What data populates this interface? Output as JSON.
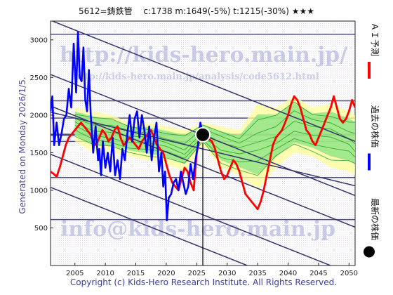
{
  "header": {
    "title": "5612=鋳鉄管　 c:1738  m:1649(-5%)  t:1215(-30%)  ★★★"
  },
  "side_label": "Generated on Monday 2026/1/5.",
  "footer": "Copyright (c) Kids-Hero Research Institute. All Rights Reserved.",
  "watermarks": {
    "url": "http://kids-hero.main.jp/",
    "analysis_url": "http://kids-hero.main.jp/analysis/code5612.html",
    "email": "info@kids-hero.main.jp"
  },
  "legend": [
    {
      "label": "ＡＩ予測",
      "color": "#ff0000",
      "marker": "line"
    },
    {
      "label": "過去の株価",
      "color": "#0000ff",
      "marker": "line"
    },
    {
      "label": "最新の株価",
      "color": "#000000",
      "marker": "dot"
    }
  ],
  "colors": {
    "ai_forecast": "#ff0000",
    "past_price": "#0000ff",
    "latest_price": "#000000",
    "trend_lines": "#33336b",
    "ensemble": "#22aa22",
    "ensemble_fill": "#7de07d",
    "ensemble_fill_light": "#ffff99"
  },
  "chart_data": {
    "type": "line",
    "xlim": [
      2001,
      2051
    ],
    "ylim": [
      0,
      3250
    ],
    "x_ticks": [
      2005,
      2010,
      2015,
      2020,
      2025,
      2030,
      2035,
      2040,
      2045,
      2050
    ],
    "x_tick_labels": [
      "2005",
      "2010",
      "2015",
      "2020",
      "2025",
      "2030",
      "2035",
      "2040",
      "2045",
      "2050"
    ],
    "y_ticks": [
      500,
      1000,
      1500,
      2000,
      2500,
      3000
    ],
    "y_tick_labels": [
      "500",
      "1000",
      "1500",
      "2000",
      "2500",
      "3000"
    ],
    "latest_point": {
      "x": 2026.0,
      "y": 1738
    },
    "current_marker_x": 2026.0,
    "horizontal_levels": [
      3075,
      2190,
      1960,
      1738,
      1649,
      1170,
      610
    ],
    "channel_lines": [
      {
        "x": [
          2001,
          2051
        ],
        "y": [
          3260,
          1650
        ]
      },
      {
        "x": [
          2001,
          2051
        ],
        "y": [
          2540,
          930
        ]
      },
      {
        "x": [
          2001,
          2051
        ],
        "y": [
          2120,
          510
        ]
      },
      {
        "x": [
          2001,
          2051
        ],
        "y": [
          1480,
          -130
        ]
      },
      {
        "x": [
          2001,
          2051
        ],
        "y": [
          1040,
          -570
        ]
      },
      {
        "x": [
          2001,
          2051
        ],
        "y": [
          2040,
          1060
        ]
      }
    ],
    "series": [
      {
        "name": "過去の株価",
        "x": [
          2001.0,
          2001.3,
          2001.6,
          2002.0,
          2002.4,
          2002.8,
          2003.2,
          2003.6,
          2004.0,
          2004.4,
          2004.8,
          2005.2,
          2005.5,
          2005.8,
          2006.1,
          2006.4,
          2006.7,
          2007.0,
          2007.3,
          2007.6,
          2008.0,
          2008.4,
          2008.8,
          2009.0,
          2009.3,
          2009.6,
          2010.0,
          2010.4,
          2010.8,
          2011.2,
          2011.6,
          2012.0,
          2012.4,
          2012.8,
          2013.2,
          2013.6,
          2014.0,
          2014.4,
          2014.8,
          2015.2,
          2015.6,
          2016.0,
          2016.4,
          2016.8,
          2017.2,
          2017.6,
          2018.0,
          2018.4,
          2018.8,
          2019.2,
          2019.5,
          2019.8,
          2020.1,
          2020.4,
          2020.8,
          2021.2,
          2021.6,
          2022.0,
          2022.4,
          2022.8,
          2023.2,
          2023.6,
          2024.0,
          2024.4,
          2024.8,
          2025.2,
          2025.6,
          2026.0
        ],
        "y": [
          2050,
          2250,
          1600,
          1900,
          1600,
          1750,
          1950,
          2000,
          2350,
          2100,
          2950,
          2300,
          3100,
          2500,
          2450,
          2900,
          2200,
          2050,
          2600,
          2000,
          1500,
          1850,
          1400,
          1550,
          1200,
          1650,
          1300,
          1500,
          1250,
          1700,
          1200,
          1400,
          1150,
          1550,
          1400,
          1750,
          2000,
          1650,
          1950,
          2050,
          1700,
          2000,
          1800,
          1500,
          1850,
          1400,
          1700,
          1900,
          1250,
          1500,
          1050,
          1250,
          600,
          900,
          950,
          1100,
          1150,
          1000,
          1250,
          1100,
          950,
          1050,
          1350,
          1150,
          1400,
          1600,
          1900,
          1738
        ]
      },
      {
        "name": "ＡＩ予測",
        "x": [
          2001.0,
          2001.5,
          2002.0,
          2002.5,
          2003.0,
          2003.5,
          2004.0,
          2004.5,
          2005.0,
          2005.5,
          2006.0,
          2006.5,
          2007.0,
          2007.5,
          2008.0,
          2008.5,
          2009.0,
          2009.5,
          2010.0,
          2010.5,
          2011.0,
          2011.5,
          2012.0,
          2012.5,
          2013.0,
          2013.5,
          2014.0,
          2014.5,
          2015.0,
          2015.5,
          2016.0,
          2016.5,
          2017.0,
          2017.5,
          2018.0,
          2018.5,
          2019.0,
          2019.5,
          2020.0,
          2020.5,
          2021.0,
          2021.5,
          2022.0,
          2022.5,
          2023.0,
          2023.5,
          2024.0,
          2024.5,
          2025.0,
          2025.5,
          2026.0,
          2026.5,
          2027.0,
          2027.5,
          2028.0,
          2028.5,
          2029.0,
          2029.5,
          2030.0,
          2030.5,
          2031.0,
          2031.5,
          2032.0,
          2032.5,
          2033.0,
          2033.5,
          2034.0,
          2034.5,
          2035.0,
          2035.5,
          2036.0,
          2036.5,
          2037.0,
          2037.5,
          2038.0,
          2038.5,
          2039.0,
          2039.5,
          2040.0,
          2040.5,
          2041.0,
          2041.5,
          2042.0,
          2042.5,
          2043.0,
          2043.5,
          2044.0,
          2044.5,
          2045.0,
          2045.5,
          2046.0,
          2046.5,
          2047.0,
          2047.5,
          2048.0,
          2048.5,
          2049.0,
          2049.5,
          2050.0,
          2050.5,
          2051.0
        ],
        "y": [
          1250,
          1220,
          1180,
          1300,
          1450,
          1600,
          1700,
          1750,
          1800,
          1850,
          1900,
          1850,
          1800,
          1750,
          1650,
          1600,
          1700,
          1800,
          1750,
          1650,
          1700,
          1800,
          1850,
          1700,
          1600,
          1650,
          1700,
          1650,
          1600,
          1550,
          1650,
          1700,
          1750,
          1800,
          1700,
          1600,
          1550,
          1500,
          1350,
          1200,
          1100,
          1050,
          1000,
          1150,
          1300,
          1250,
          1100,
          1000,
          1500,
          1700,
          1650,
          1700,
          1680,
          1650,
          1550,
          1400,
          1250,
          1150,
          1200,
          1300,
          1400,
          1350,
          1250,
          1100,
          950,
          900,
          850,
          800,
          750,
          850,
          1000,
          1200,
          1400,
          1600,
          1700,
          1750,
          1800,
          1900,
          2000,
          2150,
          2250,
          2200,
          2100,
          1950,
          1800,
          1750,
          1650,
          1600,
          1700,
          1800,
          1900,
          2000,
          2100,
          2250,
          2100,
          1950,
          1900,
          1950,
          2050,
          2200,
          2100
        ]
      }
    ],
    "ensemble_band": {
      "x": [
        2005,
        2008,
        2011,
        2014,
        2017,
        2020,
        2023,
        2026,
        2029,
        2032,
        2035,
        2038,
        2041,
        2044,
        2047,
        2050,
        2051
      ],
      "upper": [
        2100,
        2050,
        2000,
        1900,
        1900,
        1850,
        1800,
        1900,
        1850,
        1800,
        2150,
        2100,
        2250,
        2100,
        2150,
        2050,
        2000
      ],
      "lower": [
        1650,
        1500,
        1500,
        1450,
        1400,
        1350,
        1250,
        1600,
        1300,
        1200,
        1000,
        1300,
        1500,
        1450,
        1300,
        1250,
        1200
      ]
    }
  }
}
